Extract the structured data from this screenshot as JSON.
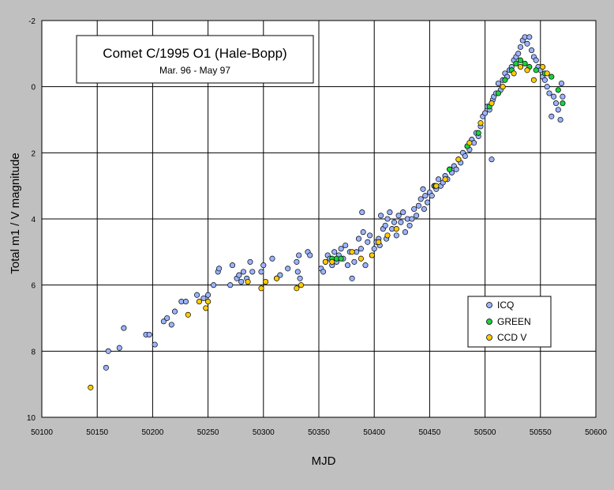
{
  "chart_data": {
    "type": "scatter",
    "title": "Comet C/1995 O1 (Hale-Bopp)",
    "subtitle": "Mar. 96 - May 97",
    "xlabel": "MJD",
    "ylabel": "Total m1 / V magnitude",
    "xlim": [
      50100,
      50600
    ],
    "ylim": [
      10,
      -2
    ],
    "y_inverted": true,
    "xticks": [
      50100,
      50150,
      50200,
      50250,
      50300,
      50350,
      50400,
      50450,
      50500,
      50550,
      50600
    ],
    "yticks": [
      -2,
      0,
      2,
      4,
      6,
      8,
      10
    ],
    "grid": true,
    "legend_position": "lower-right",
    "colors": {
      "plot_background": "#ffffffe6",
      "outer_background": "#c0c0c0",
      "ICQ": "#9bb4ff",
      "GREEN": "#19d23c",
      "CCD V": "#ffcc00"
    },
    "series": [
      {
        "name": "ICQ",
        "points": [
          [
            50158,
            8.5
          ],
          [
            50160,
            8.0
          ],
          [
            50170,
            7.9
          ],
          [
            50174,
            7.3
          ],
          [
            50194,
            7.5
          ],
          [
            50197,
            7.5
          ],
          [
            50202,
            7.8
          ],
          [
            50210,
            7.1
          ],
          [
            50213,
            7.0
          ],
          [
            50217,
            7.2
          ],
          [
            50220,
            6.8
          ],
          [
            50226,
            6.5
          ],
          [
            50230,
            6.5
          ],
          [
            50240,
            6.3
          ],
          [
            50246,
            6.4
          ],
          [
            50250,
            6.3
          ],
          [
            50255,
            6.0
          ],
          [
            50259,
            5.6
          ],
          [
            50260,
            5.5
          ],
          [
            50270,
            6.0
          ],
          [
            50272,
            5.4
          ],
          [
            50276,
            5.8
          ],
          [
            50278,
            5.7
          ],
          [
            50280,
            5.9
          ],
          [
            50282,
            5.6
          ],
          [
            50285,
            5.8
          ],
          [
            50288,
            5.3
          ],
          [
            50290,
            5.6
          ],
          [
            50298,
            5.6
          ],
          [
            50300,
            5.4
          ],
          [
            50308,
            5.2
          ],
          [
            50312,
            5.8
          ],
          [
            50315,
            5.7
          ],
          [
            50322,
            5.5
          ],
          [
            50330,
            5.3
          ],
          [
            50331,
            5.6
          ],
          [
            50332,
            5.1
          ],
          [
            50333,
            5.8
          ],
          [
            50340,
            5.0
          ],
          [
            50342,
            5.1
          ],
          [
            50352,
            5.5
          ],
          [
            50354,
            5.6
          ],
          [
            50356,
            5.3
          ],
          [
            50358,
            5.1
          ],
          [
            50360,
            5.2
          ],
          [
            50362,
            5.4
          ],
          [
            50364,
            5.0
          ],
          [
            50366,
            5.3
          ],
          [
            50368,
            5.1
          ],
          [
            50370,
            4.9
          ],
          [
            50372,
            5.2
          ],
          [
            50374,
            4.8
          ],
          [
            50376,
            5.4
          ],
          [
            50378,
            5.0
          ],
          [
            50380,
            5.8
          ],
          [
            50382,
            5.3
          ],
          [
            50384,
            5.0
          ],
          [
            50386,
            4.6
          ],
          [
            50388,
            4.9
          ],
          [
            50389,
            3.8
          ],
          [
            50390,
            4.4
          ],
          [
            50392,
            5.4
          ],
          [
            50394,
            4.7
          ],
          [
            50396,
            4.5
          ],
          [
            50398,
            5.1
          ],
          [
            50400,
            4.9
          ],
          [
            50402,
            4.7
          ],
          [
            50404,
            4.6
          ],
          [
            50405,
            4.8
          ],
          [
            50406,
            3.9
          ],
          [
            50408,
            4.3
          ],
          [
            50410,
            4.2
          ],
          [
            50411,
            4.6
          ],
          [
            50412,
            4.0
          ],
          [
            50414,
            3.8
          ],
          [
            50416,
            4.3
          ],
          [
            50418,
            4.1
          ],
          [
            50420,
            4.5
          ],
          [
            50422,
            3.9
          ],
          [
            50424,
            4.1
          ],
          [
            50426,
            3.8
          ],
          [
            50428,
            4.4
          ],
          [
            50430,
            4.0
          ],
          [
            50432,
            4.2
          ],
          [
            50434,
            4.0
          ],
          [
            50436,
            3.7
          ],
          [
            50438,
            3.9
          ],
          [
            50440,
            3.6
          ],
          [
            50442,
            3.4
          ],
          [
            50444,
            3.1
          ],
          [
            50445,
            3.7
          ],
          [
            50446,
            3.3
          ],
          [
            50448,
            3.5
          ],
          [
            50450,
            3.2
          ],
          [
            50452,
            3.3
          ],
          [
            50454,
            3.0
          ],
          [
            50456,
            3.1
          ],
          [
            50458,
            2.8
          ],
          [
            50460,
            3.0
          ],
          [
            50462,
            2.9
          ],
          [
            50464,
            2.7
          ],
          [
            50466,
            2.8
          ],
          [
            50468,
            2.5
          ],
          [
            50470,
            2.6
          ],
          [
            50472,
            2.4
          ],
          [
            50474,
            2.5
          ],
          [
            50476,
            2.2
          ],
          [
            50478,
            2.3
          ],
          [
            50480,
            2.0
          ],
          [
            50482,
            2.1
          ],
          [
            50484,
            1.8
          ],
          [
            50486,
            1.9
          ],
          [
            50488,
            1.6
          ],
          [
            50490,
            1.7
          ],
          [
            50492,
            1.4
          ],
          [
            50494,
            1.5
          ],
          [
            50496,
            1.2
          ],
          [
            50498,
            0.9
          ],
          [
            50500,
            0.8
          ],
          [
            50502,
            0.6
          ],
          [
            50504,
            0.7
          ],
          [
            50506,
            2.2
          ],
          [
            50507,
            0.4
          ],
          [
            50508,
            0.3
          ],
          [
            50510,
            0.2
          ],
          [
            50512,
            -0.1
          ],
          [
            50514,
            0.1
          ],
          [
            50516,
            -0.2
          ],
          [
            50518,
            -0.4
          ],
          [
            50520,
            -0.3
          ],
          [
            50522,
            -0.5
          ],
          [
            50524,
            -0.6
          ],
          [
            50526,
            -0.8
          ],
          [
            50528,
            -0.9
          ],
          [
            50530,
            -1.0
          ],
          [
            50532,
            -1.2
          ],
          [
            50534,
            -1.4
          ],
          [
            50536,
            -1.5
          ],
          [
            50538,
            -1.3
          ],
          [
            50540,
            -1.5
          ],
          [
            50542,
            -1.1
          ],
          [
            50544,
            -0.9
          ],
          [
            50546,
            -0.8
          ],
          [
            50548,
            -0.6
          ],
          [
            50550,
            -0.5
          ],
          [
            50552,
            -0.3
          ],
          [
            50554,
            -0.2
          ],
          [
            50556,
            0.0
          ],
          [
            50558,
            0.2
          ],
          [
            50560,
            0.9
          ],
          [
            50562,
            0.3
          ],
          [
            50564,
            0.5
          ],
          [
            50566,
            0.7
          ],
          [
            50568,
            1.0
          ],
          [
            50569,
            -0.1
          ],
          [
            50570,
            0.3
          ]
        ]
      },
      {
        "name": "GREEN",
        "points": [
          [
            50362,
            5.2
          ],
          [
            50366,
            5.2
          ],
          [
            50370,
            5.2
          ],
          [
            50455,
            3.0
          ],
          [
            50468,
            2.5
          ],
          [
            50484,
            1.8
          ],
          [
            50494,
            1.4
          ],
          [
            50504,
            0.6
          ],
          [
            50512,
            0.2
          ],
          [
            50518,
            -0.2
          ],
          [
            50524,
            -0.5
          ],
          [
            50528,
            -0.7
          ],
          [
            50532,
            -0.8
          ],
          [
            50536,
            -0.7
          ],
          [
            50540,
            -0.6
          ],
          [
            50546,
            -0.5
          ],
          [
            50554,
            -0.4
          ],
          [
            50560,
            -0.3
          ],
          [
            50566,
            0.1
          ],
          [
            50570,
            0.5
          ]
        ]
      },
      {
        "name": "CCD V",
        "points": [
          [
            50144,
            9.1
          ],
          [
            50232,
            6.9
          ],
          [
            50242,
            6.5
          ],
          [
            50248,
            6.7
          ],
          [
            50250,
            6.5
          ],
          [
            50286,
            5.9
          ],
          [
            50298,
            6.1
          ],
          [
            50302,
            5.9
          ],
          [
            50312,
            5.8
          ],
          [
            50330,
            6.1
          ],
          [
            50334,
            6.0
          ],
          [
            50356,
            5.3
          ],
          [
            50362,
            5.3
          ],
          [
            50380,
            5.0
          ],
          [
            50388,
            5.2
          ],
          [
            50398,
            5.1
          ],
          [
            50404,
            4.7
          ],
          [
            50412,
            4.5
          ],
          [
            50420,
            4.3
          ],
          [
            50456,
            3.0
          ],
          [
            50464,
            2.8
          ],
          [
            50476,
            2.2
          ],
          [
            50486,
            1.7
          ],
          [
            50496,
            1.1
          ],
          [
            50506,
            0.5
          ],
          [
            50516,
            0.0
          ],
          [
            50526,
            -0.4
          ],
          [
            50532,
            -0.6
          ],
          [
            50538,
            -0.5
          ],
          [
            50544,
            -0.2
          ],
          [
            50552,
            -0.6
          ],
          [
            50556,
            -0.4
          ]
        ]
      }
    ]
  }
}
